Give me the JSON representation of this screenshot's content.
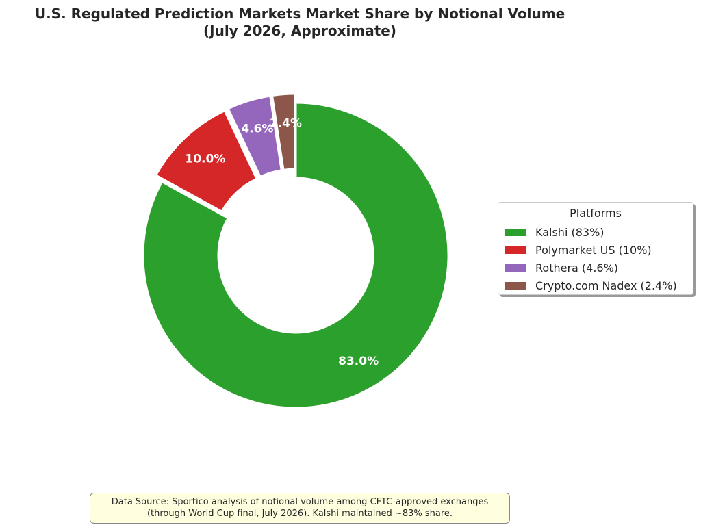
{
  "chart_data": {
    "type": "pie",
    "variant": "donut",
    "title_lines": [
      "U.S. Regulated Prediction Markets Market Share by Notional Volume",
      "(July 2026, Approximate)"
    ],
    "start_angle_deg": 90,
    "direction": "clockwise",
    "slices": [
      {
        "label": "Kalshi (83%)",
        "value": 83.0,
        "pct_label": "83.0%",
        "color": "#2ca02c",
        "exploded": false
      },
      {
        "label": "Polymarket US (10%)",
        "value": 10.0,
        "pct_label": "10.0%",
        "color": "#d62728",
        "exploded": true
      },
      {
        "label": "Rothera (4.6%)",
        "value": 4.6,
        "pct_label": "4.6%",
        "color": "#9467bd",
        "exploded": true
      },
      {
        "label": "Crypto.com Nadex (2.4%)",
        "value": 2.4,
        "pct_label": "2.4%",
        "color": "#8c564b",
        "exploded": true
      }
    ],
    "legend": {
      "title": "Platforms",
      "placement": "right"
    }
  },
  "note": {
    "lines": [
      "Data Source: Sportico analysis of notional volume among CFTC-approved exchanges",
      "(through World Cup final, July 2026). Kalshi maintained ~83% share."
    ]
  }
}
